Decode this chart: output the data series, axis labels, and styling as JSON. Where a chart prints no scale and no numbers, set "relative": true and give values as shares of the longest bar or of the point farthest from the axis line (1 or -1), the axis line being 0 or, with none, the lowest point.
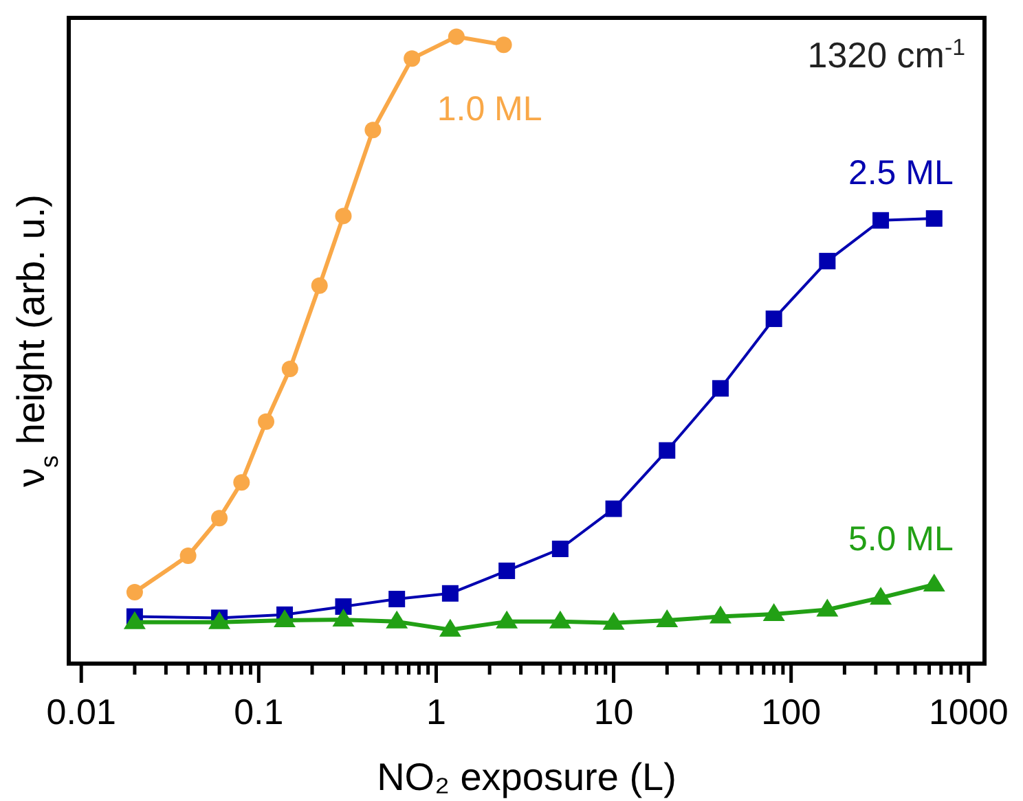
{
  "chart_data": {
    "type": "line",
    "xlabel": "NO₂ exposure (L)",
    "ylabel": "ν$_{s}$ height (arb. u.)",
    "annotations": [
      "1320 cm$^{-1}$"
    ],
    "relative": true,
    "log": "x",
    "grid": false,
    "line_style": "solid",
    "xlim": [
      0.0085,
      1230
    ],
    "xticks": [
      0.01,
      {
        "value": 0.02,
        "label": null
      },
      {
        "value": 0.03,
        "label": null
      },
      {
        "value": 0.04,
        "label": null
      },
      {
        "value": 0.05,
        "label": null
      },
      {
        "value": 0.06,
        "label": null
      },
      {
        "value": 0.07,
        "label": null
      },
      {
        "value": 0.08,
        "label": null
      },
      {
        "value": 0.09,
        "label": null
      },
      0.1,
      {
        "value": 0.2,
        "label": null
      },
      {
        "value": 0.3,
        "label": null
      },
      {
        "value": 0.4,
        "label": null
      },
      {
        "value": 0.5,
        "label": null
      },
      {
        "value": 0.6,
        "label": null
      },
      {
        "value": 0.7,
        "label": null
      },
      {
        "value": 0.8,
        "label": null
      },
      {
        "value": 0.9,
        "label": null
      },
      1,
      {
        "value": 2,
        "label": null
      },
      {
        "value": 3,
        "label": null
      },
      {
        "value": 4,
        "label": null
      },
      {
        "value": 5,
        "label": null
      },
      {
        "value": 6,
        "label": null
      },
      {
        "value": 7,
        "label": null
      },
      {
        "value": 8,
        "label": null
      },
      {
        "value": 9,
        "label": null
      },
      10,
      {
        "value": 20,
        "label": null
      },
      {
        "value": 30,
        "label": null
      },
      {
        "value": 40,
        "label": null
      },
      {
        "value": 50,
        "label": null
      },
      {
        "value": 60,
        "label": null
      },
      {
        "value": 70,
        "label": null
      },
      {
        "value": 80,
        "label": null
      },
      {
        "value": 90,
        "label": null
      },
      100,
      {
        "value": 200,
        "label": null
      },
      {
        "value": 300,
        "label": null
      },
      {
        "value": 400,
        "label": null
      },
      {
        "value": 500,
        "label": null
      },
      {
        "value": 600,
        "label": null
      },
      {
        "value": 700,
        "label": null
      },
      {
        "value": 800,
        "label": null
      },
      {
        "value": 900,
        "label": null
      },
      1000
    ],
    "series": [
      {
        "name": "1.0 ML",
        "color": "#f9a848",
        "marker": "circle",
        "x": [
          0.02,
          0.04,
          0.06,
          0.08,
          0.11,
          0.15,
          0.22,
          0.3,
          0.44,
          0.73,
          1.3,
          2.4
        ],
        "values": [
          0.114,
          0.172,
          0.232,
          0.289,
          0.386,
          0.47,
          0.603,
          0.714,
          0.851,
          0.965,
          1.0,
          0.987
        ]
      },
      {
        "name": "2.5 ML",
        "color": "#0000b0",
        "marker": "square",
        "x": [
          0.02,
          0.06,
          0.14,
          0.3,
          0.6,
          1.2,
          2.5,
          5,
          10,
          20,
          40,
          80,
          160,
          320,
          640
        ],
        "values": [
          0.075,
          0.073,
          0.078,
          0.091,
          0.103,
          0.112,
          0.148,
          0.183,
          0.247,
          0.34,
          0.439,
          0.55,
          0.642,
          0.707,
          0.71
        ]
      },
      {
        "name": "5.0 ML",
        "color": "#22a015",
        "marker": "triangle",
        "x": [
          0.02,
          0.06,
          0.14,
          0.3,
          0.6,
          1.2,
          2.5,
          5,
          10,
          20,
          40,
          80,
          160,
          320,
          640
        ],
        "values": [
          0.066,
          0.066,
          0.069,
          0.07,
          0.067,
          0.054,
          0.067,
          0.067,
          0.065,
          0.069,
          0.075,
          0.079,
          0.086,
          0.105,
          0.126
        ]
      }
    ]
  }
}
